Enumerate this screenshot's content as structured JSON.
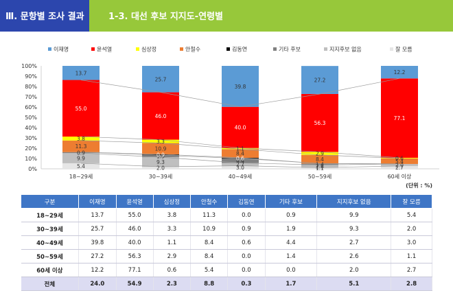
{
  "header": {
    "section": "Ⅲ. 문항별 조사 결과",
    "subtitle": "1-3. 대선 후보 지지도-연령별"
  },
  "unit": "(단위 : %)",
  "colors": {
    "이재명": "#5b9bd5",
    "윤석열": "#ff0000",
    "심상정": "#ffff00",
    "안철수": "#ed7d31",
    "김동연": "#000000",
    "기타 후보": "#808080",
    "지지후보 없음": "#bfbfbf",
    "잘 모름": "#e6e6e6"
  },
  "chart_data": {
    "type": "bar",
    "stacked": true,
    "categories": [
      "18~29세",
      "30~39세",
      "40~49세",
      "50~59세",
      "60세 이상"
    ],
    "series": [
      {
        "name": "이재명",
        "values": [
          13.7,
          25.7,
          39.8,
          27.2,
          12.2
        ]
      },
      {
        "name": "윤석열",
        "values": [
          55.0,
          46.0,
          40.0,
          56.3,
          77.1
        ]
      },
      {
        "name": "심상정",
        "values": [
          3.8,
          3.3,
          1.1,
          2.9,
          0.6
        ]
      },
      {
        "name": "안철수",
        "values": [
          11.3,
          10.9,
          8.4,
          8.4,
          5.4
        ]
      },
      {
        "name": "김동연",
        "values": [
          0.0,
          0.9,
          0.6,
          0.0,
          0.0
        ]
      },
      {
        "name": "기타 후보",
        "values": [
          0.9,
          1.9,
          4.4,
          1.4,
          0.0
        ]
      },
      {
        "name": "지지후보 없음",
        "values": [
          9.9,
          9.3,
          2.7,
          2.6,
          2.0
        ]
      },
      {
        "name": "잘 모름",
        "values": [
          5.4,
          2.0,
          3.0,
          1.1,
          2.7
        ]
      }
    ],
    "ylim": [
      0,
      100
    ],
    "yticks": [
      "0%",
      "10%",
      "20%",
      "30%",
      "40%",
      "50%",
      "60%",
      "70%",
      "80%",
      "90%",
      "100%"
    ],
    "legend_position": "top",
    "grid": false
  },
  "table": {
    "headers": [
      "구분",
      "이재명",
      "윤석열",
      "심상정",
      "안철수",
      "김동연",
      "기타 후보",
      "지지후보 없음",
      "잘 모름"
    ],
    "rows": [
      [
        "18~29세",
        "13.7",
        "55.0",
        "3.8",
        "11.3",
        "0.0",
        "0.9",
        "9.9",
        "5.4"
      ],
      [
        "30~39세",
        "25.7",
        "46.0",
        "3.3",
        "10.9",
        "0.9",
        "1.9",
        "9.3",
        "2.0"
      ],
      [
        "40~49세",
        "39.8",
        "40.0",
        "1.1",
        "8.4",
        "0.6",
        "4.4",
        "2.7",
        "3.0"
      ],
      [
        "50~59세",
        "27.2",
        "56.3",
        "2.9",
        "8.4",
        "0.0",
        "1.4",
        "2.6",
        "1.1"
      ],
      [
        "60세 이상",
        "12.2",
        "77.1",
        "0.6",
        "5.4",
        "0.0",
        "0.0",
        "2.0",
        "2.7"
      ],
      [
        "전체",
        "24.0",
        "54.9",
        "2.3",
        "8.8",
        "0.3",
        "1.7",
        "5.1",
        "2.8"
      ]
    ]
  }
}
